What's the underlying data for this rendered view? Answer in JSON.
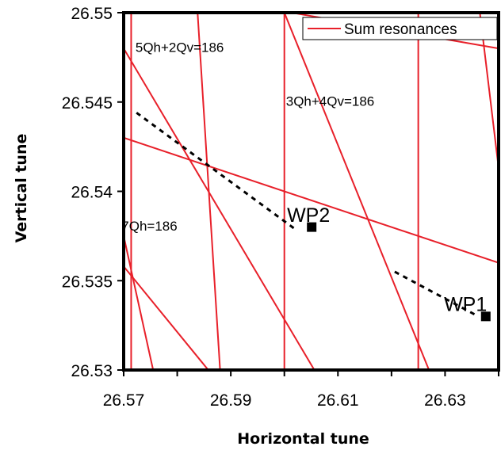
{
  "chart_data": {
    "type": "line",
    "xlabel": "Horizontal tune",
    "ylabel": "Vertical tune",
    "xlim": [
      26.57,
      26.64
    ],
    "ylim": [
      26.53,
      26.55
    ],
    "x_ticks": [
      "26.57",
      "26.59",
      "26.61",
      "26.63"
    ],
    "y_ticks": [
      "26.53",
      "26.535",
      "26.54",
      "26.545",
      "26.55"
    ],
    "grid": false,
    "legend": {
      "position": "top-right",
      "entries": [
        "Sum resonances"
      ]
    },
    "colors": {
      "resonance": "#e8202a",
      "working_point": "#000000",
      "frame": "#000000"
    },
    "resonance_lines": [
      {
        "x1": 26.5714,
        "y1": 26.53,
        "x2": 26.5714,
        "y2": 26.55
      },
      {
        "x1": 26.6,
        "y1": 26.53,
        "x2": 26.6,
        "y2": 26.55
      },
      {
        "x1": 26.625,
        "y1": 26.53,
        "x2": 26.625,
        "y2": 26.55
      },
      {
        "x1": 26.57,
        "y1": 26.548,
        "x2": 26.6056,
        "y2": 26.53
      },
      {
        "x1": 26.6,
        "y1": 26.55,
        "x2": 26.627,
        "y2": 26.53
      },
      {
        "x1": 26.57,
        "y1": 26.543,
        "x2": 26.64,
        "y2": 26.536
      },
      {
        "x1": 26.57,
        "y1": 26.5375,
        "x2": 26.5755,
        "y2": 26.53
      },
      {
        "x1": 26.57,
        "y1": 26.5358,
        "x2": 26.5858,
        "y2": 26.53
      },
      {
        "x1": 26.5838,
        "y1": 26.55,
        "x2": 26.588,
        "y2": 26.53
      },
      {
        "x1": 26.6014,
        "y1": 26.55,
        "x2": 26.64,
        "y2": 26.548
      },
      {
        "x1": 26.6365,
        "y1": 26.55,
        "x2": 26.64,
        "y2": 26.5413
      }
    ],
    "annotations": [
      {
        "text": "5Qh+2Qv=186",
        "x": 26.5722,
        "y": 26.5478
      },
      {
        "text": "3Qh+4Qv=186",
        "x": 26.6003,
        "y": 26.5448
      },
      {
        "text": "7Qh=186",
        "x": 26.5696,
        "y": 26.5378
      }
    ],
    "working_points": [
      {
        "label": "WP2",
        "x": 26.6051,
        "y": 26.538,
        "label_x": 26.6005,
        "label_y": 26.5383,
        "trail": [
          [
            26.5724,
            26.5444
          ],
          [
            26.6024,
            26.5378
          ]
        ]
      },
      {
        "label": "WP1",
        "x": 26.6376,
        "y": 26.533,
        "label_x": 26.6298,
        "label_y": 26.5333,
        "trail": [
          [
            26.6206,
            26.5355
          ],
          [
            26.6356,
            26.5331
          ]
        ]
      }
    ]
  }
}
